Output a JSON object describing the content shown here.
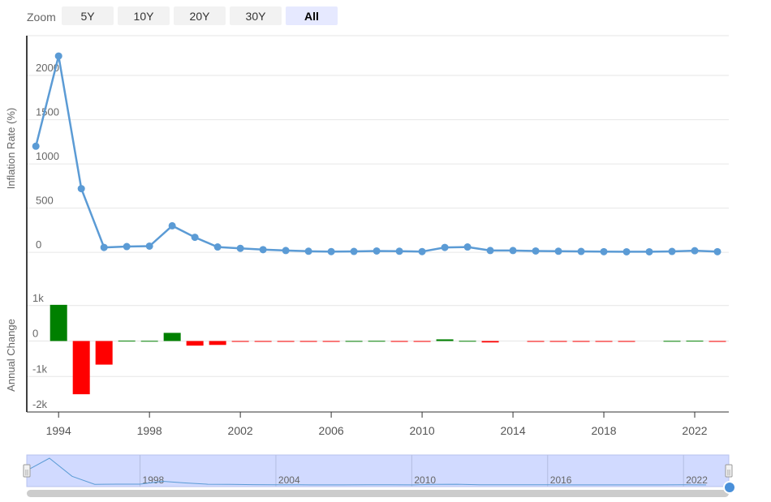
{
  "zoom": {
    "label": "Zoom",
    "buttons": [
      {
        "label": "5Y",
        "active": false
      },
      {
        "label": "10Y",
        "active": false
      },
      {
        "label": "20Y",
        "active": false
      },
      {
        "label": "30Y",
        "active": false
      },
      {
        "label": "All",
        "active": true
      }
    ]
  },
  "chart_data": [
    {
      "type": "line",
      "title": "",
      "ylabel": "Inflation Rate (%)",
      "ylim": [
        -100,
        2450
      ],
      "yticks": [
        0,
        500,
        1000,
        1500,
        2000
      ],
      "grid": true,
      "color": "#5b9bd5",
      "x": [
        1993,
        1994,
        1995,
        1996,
        1997,
        1998,
        1999,
        2000,
        2001,
        2002,
        2003,
        2004,
        2005,
        2006,
        2007,
        2008,
        2009,
        2010,
        2011,
        2012,
        2013,
        2014,
        2015,
        2016,
        2017,
        2018,
        2019,
        2020,
        2021,
        2022,
        2023
      ],
      "values": [
        1200,
        2220,
        720,
        55,
        65,
        70,
        300,
        170,
        60,
        45,
        30,
        20,
        12,
        8,
        10,
        15,
        12,
        8,
        55,
        60,
        20,
        20,
        15,
        12,
        10,
        7,
        6,
        6,
        10,
        18,
        7
      ]
    },
    {
      "type": "bar",
      "title": "",
      "ylabel": "Annual Change",
      "ylim": [
        -2000,
        1200
      ],
      "yticks": [
        -2000,
        -1000,
        0,
        1000
      ],
      "ytick_labels": [
        "-2k",
        "-1k",
        "0",
        "1k"
      ],
      "grid": true,
      "positive_color": "#008000",
      "negative_color": "#ff0000",
      "x": [
        1994,
        1995,
        1996,
        1997,
        1998,
        1999,
        2000,
        2001,
        2002,
        2003,
        2004,
        2005,
        2006,
        2007,
        2008,
        2009,
        2010,
        2011,
        2012,
        2013,
        2014,
        2015,
        2016,
        2017,
        2018,
        2019,
        2020,
        2021,
        2022,
        2023
      ],
      "values": [
        1020,
        -1500,
        -665,
        10,
        5,
        230,
        -130,
        -110,
        -15,
        -15,
        -10,
        -8,
        -4,
        2,
        5,
        -3,
        -4,
        47,
        5,
        -40,
        0,
        -5,
        -3,
        -2,
        -3,
        -1,
        0,
        4,
        8,
        -11
      ]
    }
  ],
  "x_axis": {
    "ticks": [
      1994,
      1998,
      2002,
      2006,
      2010,
      2014,
      2018,
      2022
    ],
    "range": [
      1992.6,
      2023.5
    ]
  },
  "navigator": {
    "ticks": [
      1998,
      2004,
      2010,
      2016,
      2022
    ],
    "range": [
      1993,
      2024
    ],
    "handle_left": "||",
    "handle_right": "||",
    "mask_fill": "#ccd6ff",
    "line_color": "#5b9bd5"
  }
}
